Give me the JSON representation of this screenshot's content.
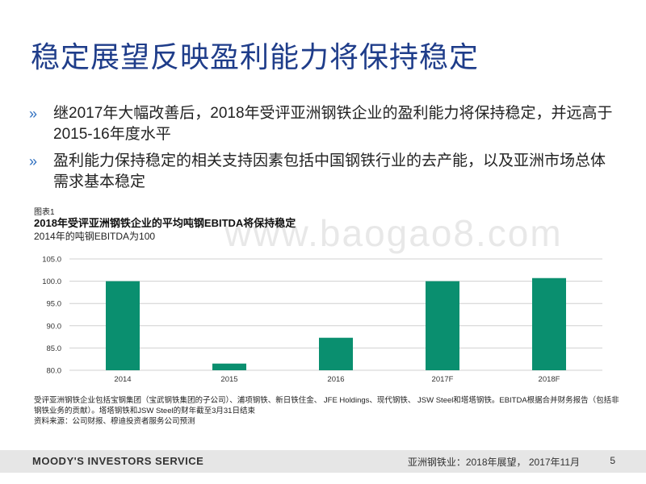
{
  "slide": {
    "title": "稳定展望反映盈利能力将保持稳定",
    "bullet_marker": "»",
    "bullets": [
      "继2017年大幅改善后，2018年受评亚洲钢铁企业的盈利能力将保持稳定，并远高于2015-16年度水平",
      "盈利能力保持稳定的相关支持因素包括中国钢铁行业的去产能，以及亚洲市场总体需求基本稳定"
    ]
  },
  "figure": {
    "label": "图表1",
    "title": "2018年受评亚洲钢铁企业的平均吨钢EBITDA将保持稳定",
    "subtitle": "2014年的吨钢EBITDA为100",
    "watermark": "www.baogao8.com"
  },
  "chart_data": {
    "type": "bar",
    "categories": [
      "2014",
      "2015",
      "2016",
      "2017F",
      "2018F"
    ],
    "values": [
      100.0,
      81.5,
      87.3,
      100.0,
      100.7
    ],
    "ylim": [
      80.0,
      105.0
    ],
    "yticks": [
      "80.0",
      "85.0",
      "90.0",
      "95.0",
      "100.0",
      "105.0"
    ],
    "grid": true,
    "bar_color": "#0a8f6f",
    "title": "",
    "xlabel": "",
    "ylabel": ""
  },
  "notes": {
    "line1": "受评亚洲钢铁企业包括宝钢集团（宝武钢铁集团的子公司）、浦项钢铁、新日铁住金、 JFE Holdings、现代钢铁、 JSW Steel和塔塔钢铁。EBITDA根据合并财务报告（包括非钢铁业务的贡献）。塔塔钢铁和JSW Steel的财年截至3月31日结束",
    "source": "资料来源：公司财报、穆迪投资者服务公司预测"
  },
  "footer": {
    "brand": "MOODY'S INVESTORS SERVICE",
    "report": "亚洲钢铁业：2018年展望， 2017年11月",
    "page": "5"
  }
}
